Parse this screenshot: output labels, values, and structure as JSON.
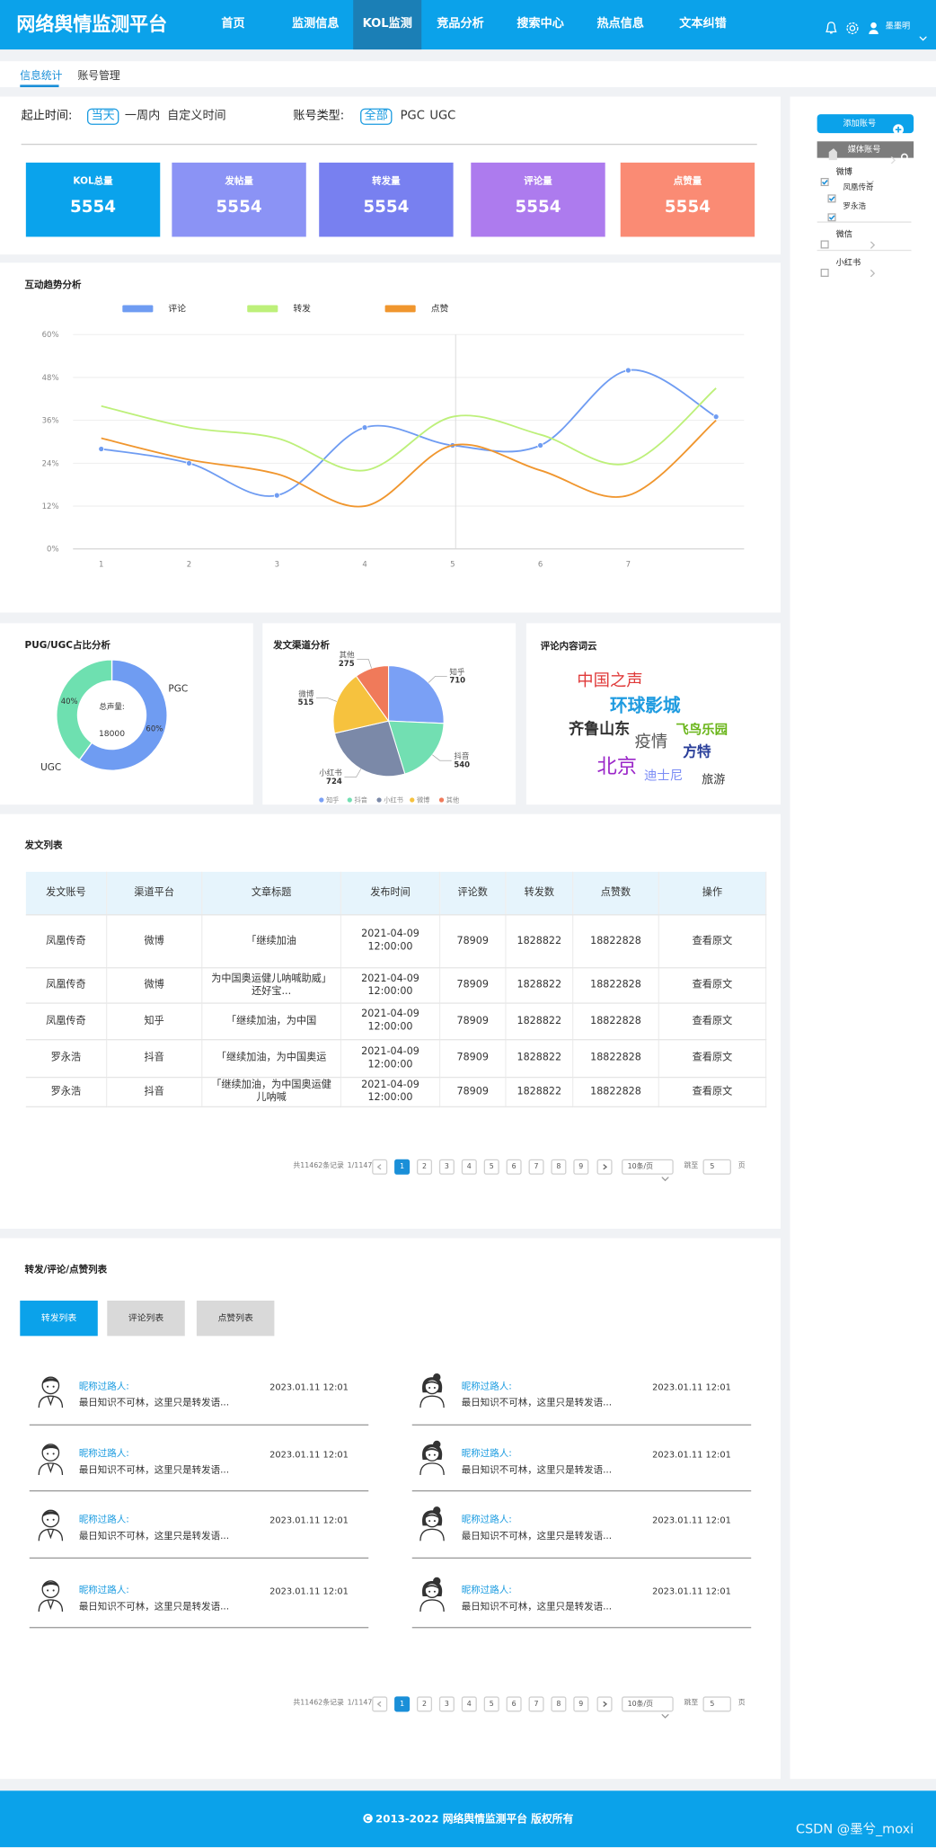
{
  "header": {
    "title": "网络舆情监测平台",
    "nav": [
      "首页",
      "监测信息",
      "KOL监测",
      "竞品分析",
      "搜索中心",
      "热点信息",
      "文本纠错"
    ],
    "user": "墨墨明"
  },
  "tabs": [
    "信息统计",
    "账号管理"
  ],
  "filters": {
    "time_label": "起止时间:",
    "time_options": [
      "当天",
      "一周内",
      "自定义时间"
    ],
    "type_label": "账号类型:",
    "type_options": [
      "全部",
      "PGC",
      "UGC"
    ]
  },
  "cards": [
    {
      "label": "KOL总量",
      "value": 5554,
      "color": "#0aa3ec"
    },
    {
      "label": "发帖量",
      "value": 5554,
      "color": "#8b93f5"
    },
    {
      "label": "转发量",
      "value": 5554,
      "color": "#7880f0"
    },
    {
      "label": "评论量",
      "value": 5554,
      "color": "#ad7bee"
    },
    {
      "label": "点赞量",
      "value": 5554,
      "color": "#fa8b74"
    }
  ],
  "sidebar": {
    "add_button": "添加账号",
    "group": "媒体账号",
    "accounts": [
      {
        "name": "微博",
        "checked": true,
        "children": [
          {
            "name": "凤凰传奇",
            "checked": true
          },
          {
            "name": "罗永浩",
            "checked": true
          }
        ]
      },
      {
        "name": "微信",
        "checked": false
      },
      {
        "name": "小红书",
        "checked": false
      }
    ]
  },
  "chart_data": [
    {
      "type": "line",
      "title": "互动趋势分析",
      "categories": [
        "1",
        "2",
        "3",
        "4",
        "5",
        "6",
        "7",
        null
      ],
      "series": [
        {
          "name": "评论",
          "color": "#6f9cf2",
          "markers": true,
          "values": [
            28,
            24,
            15,
            34,
            29,
            29,
            50,
            37
          ]
        },
        {
          "name": "转发",
          "color": "#bdf07a",
          "markers": false,
          "values": [
            40,
            34,
            31,
            22,
            37,
            32,
            24,
            45
          ]
        },
        {
          "name": "点赞",
          "color": "#f0962e",
          "markers": false,
          "values": [
            31,
            25,
            21,
            12,
            29,
            22,
            15,
            36
          ]
        }
      ],
      "ylim": [
        0,
        60
      ],
      "yticks": [
        {
          "value": 0,
          "label": "0%"
        },
        {
          "value": 12,
          "label": "12%"
        },
        {
          "value": 24,
          "label": "24%"
        },
        {
          "value": 36,
          "label": "36%"
        },
        {
          "value": 48,
          "label": "48%"
        },
        {
          "value": 60,
          "label": "60%"
        }
      ],
      "grid": true
    },
    {
      "type": "donut",
      "title": "PUG/UGC占比分析",
      "categories": [
        "PGC",
        "UGC"
      ],
      "values": [
        60,
        40
      ],
      "value_labels": [
        "60%",
        "40%"
      ],
      "colors": [
        "#6f9cf2",
        "#6ee0b0"
      ],
      "center_label": "总声量:",
      "center_value": 18000
    },
    {
      "type": "pie",
      "title": "发文渠道分析",
      "categories": [
        "知乎",
        "抖音",
        "小红书",
        "微博",
        "其他"
      ],
      "values": [
        710,
        540,
        724,
        515,
        275
      ],
      "colors": [
        "#7aa0f5",
        "#72dfb2",
        "#7b89a8",
        "#f6c23e",
        "#f07a5a"
      ]
    }
  ],
  "wordcloud": {
    "title": "评论内容词云",
    "words": [
      {
        "text": "中国之声",
        "color": "#e03a3a"
      },
      {
        "text": "环球影城",
        "color": "#1e9be0"
      },
      {
        "text": "齐鲁山东",
        "color": "#333333"
      },
      {
        "text": "疫情",
        "color": "#555555"
      },
      {
        "text": "飞鸟乐园",
        "color": "#6ab51a"
      },
      {
        "text": "方特",
        "color": "#2a3f9a"
      },
      {
        "text": "北京",
        "color": "#9b27c9"
      },
      {
        "text": "迪士尼",
        "color": "#7b8cf5"
      },
      {
        "text": "旅游",
        "color": "#333333"
      }
    ]
  },
  "post_table": {
    "title": "发文列表",
    "columns": [
      "发文账号",
      "渠道平台",
      "文章标题",
      "发布时间",
      "评论数",
      "转发数",
      "点赞数",
      "操作"
    ],
    "rows": [
      [
        "凤凰传奇",
        "微博",
        "「继续加油",
        "2021-04-09 12:00:00",
        78909,
        1828822,
        18822828,
        "查看原文"
      ],
      [
        "凤凰传奇",
        "微博",
        "为中国奥运健儿呐喊助威」还好宝...",
        "2021-04-09 12:00:00",
        78909,
        1828822,
        18822828,
        "查看原文"
      ],
      [
        "凤凰传奇",
        "知乎",
        "「继续加油，为中国",
        "2021-04-09 12:00:00",
        78909,
        1828822,
        18822828,
        "查看原文"
      ],
      [
        "罗永浩",
        "抖音",
        "「继续加油，为中国奥运",
        "2021-04-09 12:00:00",
        78909,
        1828822,
        18822828,
        "查看原文"
      ],
      [
        "罗永浩",
        "抖音",
        "「继续加油，为中国奥运健儿呐喊",
        "2021-04-09 12:00:00",
        78909,
        1828822,
        18822828,
        "查看原文"
      ]
    ]
  },
  "pagination": {
    "total": "共11462条记录",
    "pages_info": "1/1147",
    "pages": [
      1,
      2,
      3,
      4,
      5,
      6,
      7,
      8,
      9
    ],
    "page_size": "10条/页",
    "jump_label": "跳至",
    "jump_value": 5,
    "page_unit": "页"
  },
  "interaction_list": {
    "title": "转发/评论/点赞列表",
    "tabs": [
      "转发列表",
      "评论列表",
      "点赞列表"
    ],
    "items": [
      {
        "name": "昵称过路人:",
        "time": "2023.01.11 12:01",
        "text": "最日知识不可林，这里只是转发语..."
      },
      {
        "name": "昵称过路人:",
        "time": "2023.01.11 12:01",
        "text": "最日知识不可林，这里只是转发语..."
      },
      {
        "name": "昵称过路人:",
        "time": "2023.01.11 12:01",
        "text": "最日知识不可林，这里只是转发语..."
      },
      {
        "name": "昵称过路人:",
        "time": "2023.01.11 12:01",
        "text": "最日知识不可林，这里只是转发语..."
      },
      {
        "name": "昵称过路人:",
        "time": "2023.01.11 12:01",
        "text": "最日知识不可林，这里只是转发语..."
      },
      {
        "name": "昵称过路人:",
        "time": "2023.01.11 12:01",
        "text": "最日知识不可林，这里只是转发语..."
      },
      {
        "name": "昵称过路人:",
        "time": "2023.01.11 12:01",
        "text": "最日知识不可林，这里只是转发语..."
      },
      {
        "name": "昵称过路人:",
        "time": "2023.01.11 12:01",
        "text": "最日知识不可林，这里只是转发语..."
      }
    ]
  },
  "footer": "2013-2022 网络舆情监测平台 版权所有",
  "watermark": "CSDN @墨兮_moxi"
}
